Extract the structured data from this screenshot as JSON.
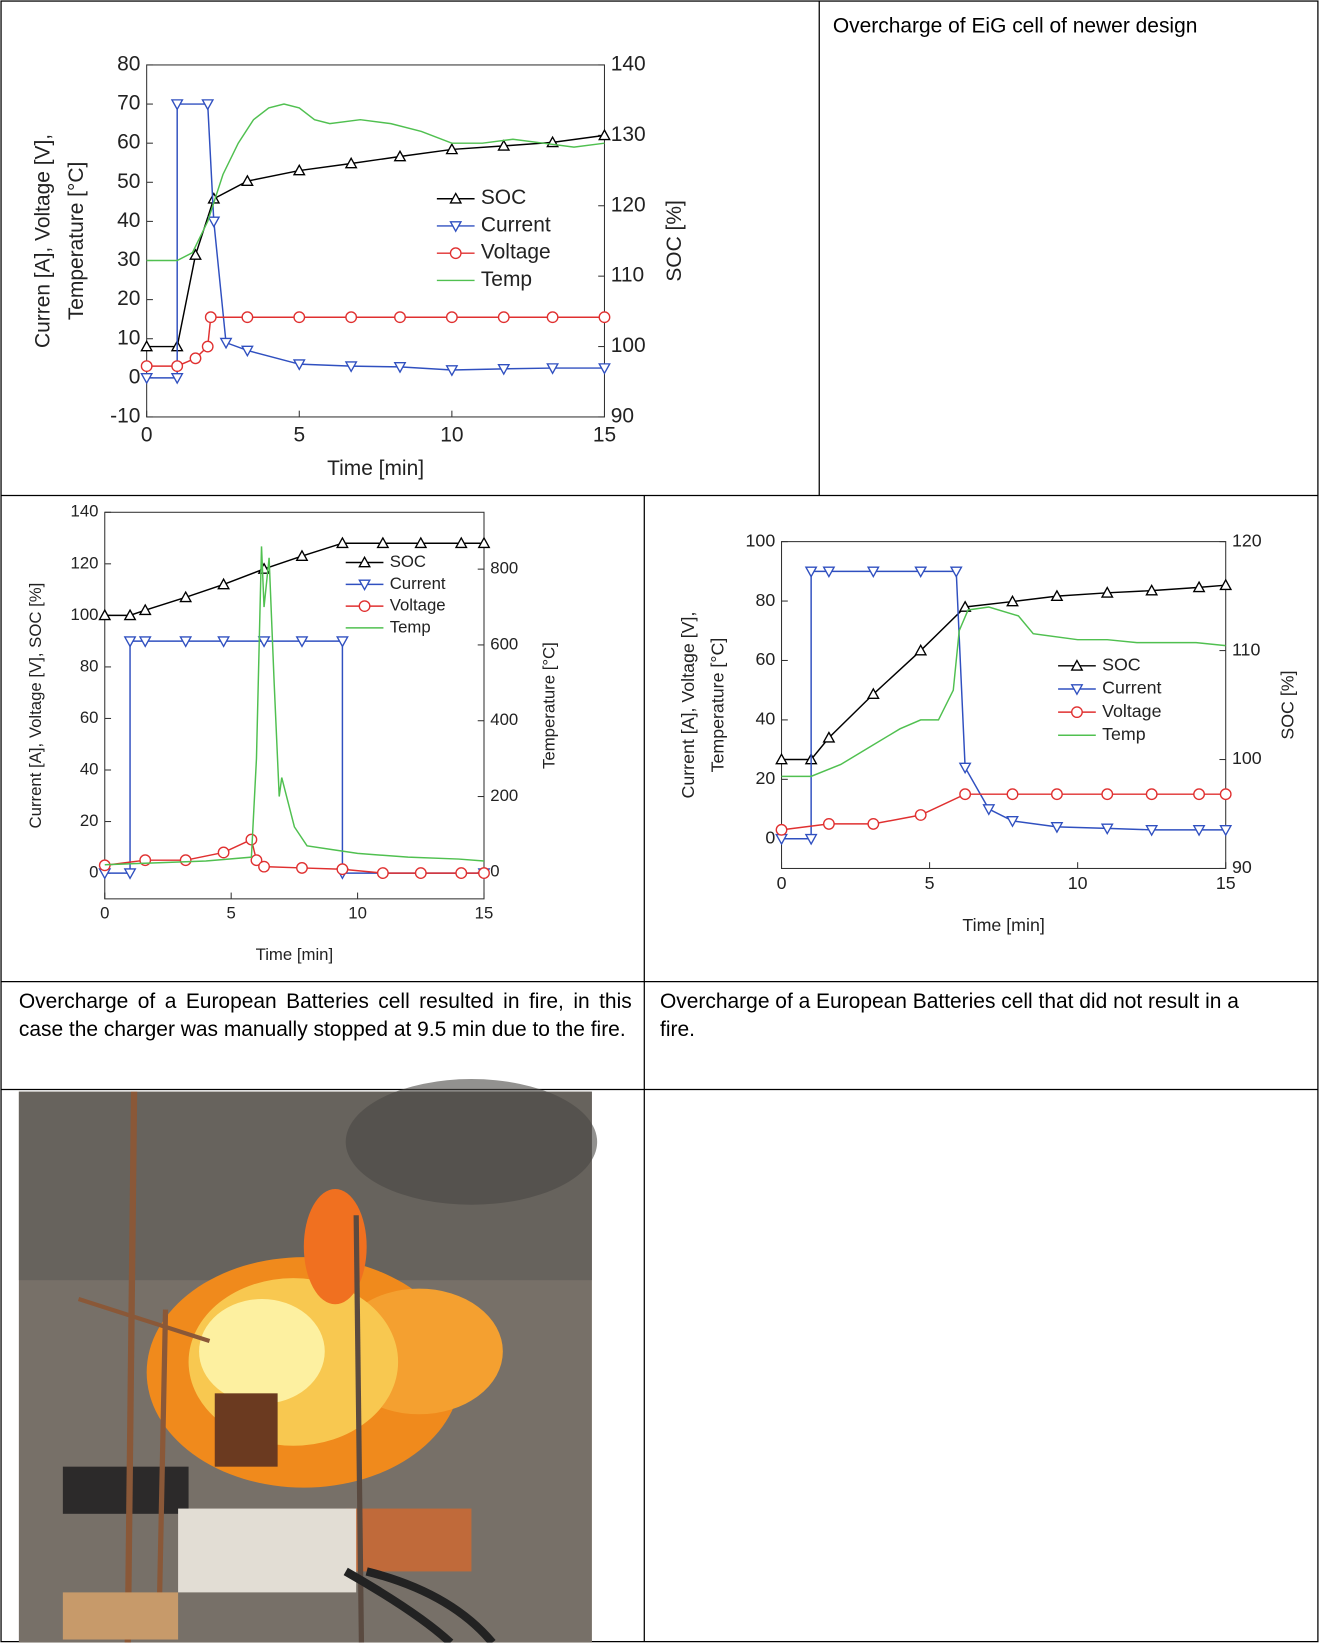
{
  "cells": {
    "eig_caption": "Overcharge of EiG cell of newer design",
    "fire_caption": "Overcharge of a European Batteries cell resulted in fire, in this case the charger was manually stopped at 9.5 min due to the fire.",
    "nofire_caption": [
      "Overcharge of a European Batteries cell that did not result in a",
      "fire."
    ]
  },
  "chart_data": [
    {
      "type": "line",
      "xlabel": "Time [min]",
      "ylabel": [
        "Curren [A], Voltage [V],",
        "Temperature [°C]"
      ],
      "y2label": "SOC [%]",
      "xlim": [
        0,
        15
      ],
      "xticks": [
        0,
        5,
        10,
        15
      ],
      "ylim": [
        -10,
        80
      ],
      "yticks": [
        -10,
        0,
        10,
        20,
        30,
        40,
        50,
        60,
        70,
        80
      ],
      "y2lim": [
        90,
        140
      ],
      "y2ticks": [
        90,
        100,
        110,
        120,
        130,
        140
      ],
      "legend": "center right",
      "series": [
        {
          "name": "SOC",
          "color": "#000000",
          "marker": "triangle-up",
          "axis": "y2",
          "x": [
            0,
            1,
            1.6,
            2.2,
            3.3,
            5,
            6.7,
            8.3,
            10,
            11.7,
            13.3,
            15
          ],
          "values": [
            100,
            100,
            113,
            121,
            123.5,
            125,
            126,
            127,
            128,
            128.5,
            129,
            130
          ]
        },
        {
          "name": "Current",
          "color": "#3050c0",
          "marker": "triangle-down",
          "x": [
            0,
            1,
            1,
            2,
            2.2,
            2.6,
            3.3,
            5,
            6.7,
            8.3,
            10,
            11.7,
            13.3,
            15
          ],
          "values": [
            0,
            0,
            70,
            70,
            40,
            9,
            7,
            3.5,
            3,
            2.8,
            2,
            2.3,
            2.5,
            2.5
          ]
        },
        {
          "name": "Voltage",
          "color": "#e03030",
          "marker": "circle",
          "x": [
            0,
            1,
            1.6,
            2,
            2.1,
            3.3,
            5,
            6.7,
            8.3,
            10,
            11.7,
            13.3,
            15
          ],
          "values": [
            3,
            3,
            5,
            8,
            15.5,
            15.5,
            15.5,
            15.5,
            15.5,
            15.5,
            15.5,
            15.5,
            15.5
          ]
        },
        {
          "name": "Temp",
          "color": "#50c050",
          "x": [
            0,
            1,
            1.5,
            2,
            2.5,
            3,
            3.5,
            4,
            4.5,
            5,
            5.5,
            6,
            7,
            8,
            9,
            10,
            11,
            12,
            13,
            14,
            15
          ],
          "values": [
            30,
            30,
            32,
            40,
            52,
            60,
            66,
            69,
            70,
            69,
            66,
            65,
            66,
            65,
            63,
            60,
            60,
            61,
            60,
            59,
            60
          ]
        }
      ]
    },
    {
      "type": "line",
      "xlabel": "Time [min]",
      "ylabel": [
        "Current [A], Voltage [V], SOC [%]"
      ],
      "y2label": "Temperature [°C]",
      "xlim": [
        0,
        15
      ],
      "xticks": [
        0,
        5,
        10,
        15
      ],
      "ylim": [
        -10,
        140
      ],
      "yticks": [
        0,
        20,
        40,
        60,
        80,
        100,
        120,
        140
      ],
      "y2lim": [
        -70,
        950
      ],
      "y2ticks": [
        0,
        200,
        400,
        600,
        800
      ],
      "legend": "upper right",
      "series": [
        {
          "name": "SOC",
          "color": "#000000",
          "marker": "triangle-up",
          "x": [
            0,
            1,
            1.6,
            3.2,
            4.7,
            6.3,
            7.8,
            9.4,
            11,
            12.5,
            14.1,
            15
          ],
          "values": [
            100,
            100,
            102,
            107,
            112,
            118,
            123,
            128,
            128,
            128,
            128,
            128
          ]
        },
        {
          "name": "Current",
          "color": "#3050c0",
          "marker": "triangle-down",
          "x": [
            0,
            1,
            1,
            1.6,
            3.2,
            4.7,
            6.3,
            7.8,
            9.4,
            9.4,
            15
          ],
          "values": [
            0,
            0,
            90,
            90,
            90,
            90,
            90,
            90,
            90,
            0,
            0
          ]
        },
        {
          "name": "Voltage",
          "color": "#e03030",
          "marker": "circle",
          "x": [
            0,
            1.6,
            3.2,
            4.7,
            5.8,
            6,
            6.3,
            7.8,
            9.4,
            11,
            12.5,
            14.1,
            15
          ],
          "values": [
            3,
            5,
            5,
            8,
            13,
            5,
            2.5,
            2,
            1.5,
            0,
            0,
            0,
            0
          ]
        },
        {
          "name": "Temp",
          "color": "#50c050",
          "axis": "y2",
          "x": [
            0,
            2,
            4,
            5.8,
            6,
            6.2,
            6.3,
            6.5,
            6.7,
            6.9,
            7,
            7.5,
            8,
            9,
            10,
            12,
            14,
            15
          ],
          "values": [
            20,
            25,
            30,
            40,
            300,
            860,
            700,
            830,
            500,
            200,
            250,
            120,
            70,
            60,
            50,
            40,
            35,
            30
          ]
        }
      ]
    },
    {
      "type": "line",
      "xlabel": "Time [min]",
      "ylabel": [
        "Current [A], Voltage [V],",
        "Temperature [°C]"
      ],
      "y2label": "SOC [%]",
      "xlim": [
        0,
        15
      ],
      "xticks": [
        0,
        5,
        10,
        15
      ],
      "ylim": [
        -10,
        100
      ],
      "yticks": [
        0,
        20,
        40,
        60,
        80,
        100
      ],
      "y2lim": [
        90,
        120
      ],
      "y2ticks": [
        90,
        100,
        110,
        120
      ],
      "legend": "center right",
      "series": [
        {
          "name": "SOC",
          "color": "#000000",
          "marker": "triangle-up",
          "axis": "y2",
          "x": [
            0,
            1,
            1.6,
            3.1,
            4.7,
            6.2,
            7.8,
            9.3,
            11,
            12.5,
            14.1,
            15
          ],
          "values": [
            100,
            100,
            102,
            106,
            110,
            114,
            114.5,
            115,
            115.3,
            115.5,
            115.8,
            116
          ]
        },
        {
          "name": "Current",
          "color": "#3050c0",
          "marker": "triangle-down",
          "x": [
            0,
            1,
            1,
            1.6,
            3.1,
            4.7,
            5.9,
            6.2,
            7,
            7.8,
            9.3,
            11,
            12.5,
            14.1,
            15
          ],
          "values": [
            0,
            0,
            90,
            90,
            90,
            90,
            90,
            24,
            10,
            6,
            4,
            3.5,
            3,
            3,
            3
          ]
        },
        {
          "name": "Voltage",
          "color": "#e03030",
          "marker": "circle",
          "x": [
            0,
            1.6,
            3.1,
            4.7,
            6.2,
            7.8,
            9.3,
            11,
            12.5,
            14.1,
            15
          ],
          "values": [
            3,
            5,
            5,
            8,
            15,
            15,
            15,
            15,
            15,
            15,
            15
          ]
        },
        {
          "name": "Temp",
          "color": "#50c050",
          "x": [
            0,
            1,
            2,
            3,
            4,
            4.7,
            5.3,
            5.8,
            6,
            6.3,
            7,
            8,
            8.5,
            10,
            11,
            12,
            13,
            14,
            15
          ],
          "values": [
            21,
            21,
            25,
            31,
            37,
            40,
            40,
            50,
            70,
            77,
            78,
            75,
            69,
            67,
            67,
            66,
            66,
            66,
            65
          ]
        }
      ]
    }
  ]
}
